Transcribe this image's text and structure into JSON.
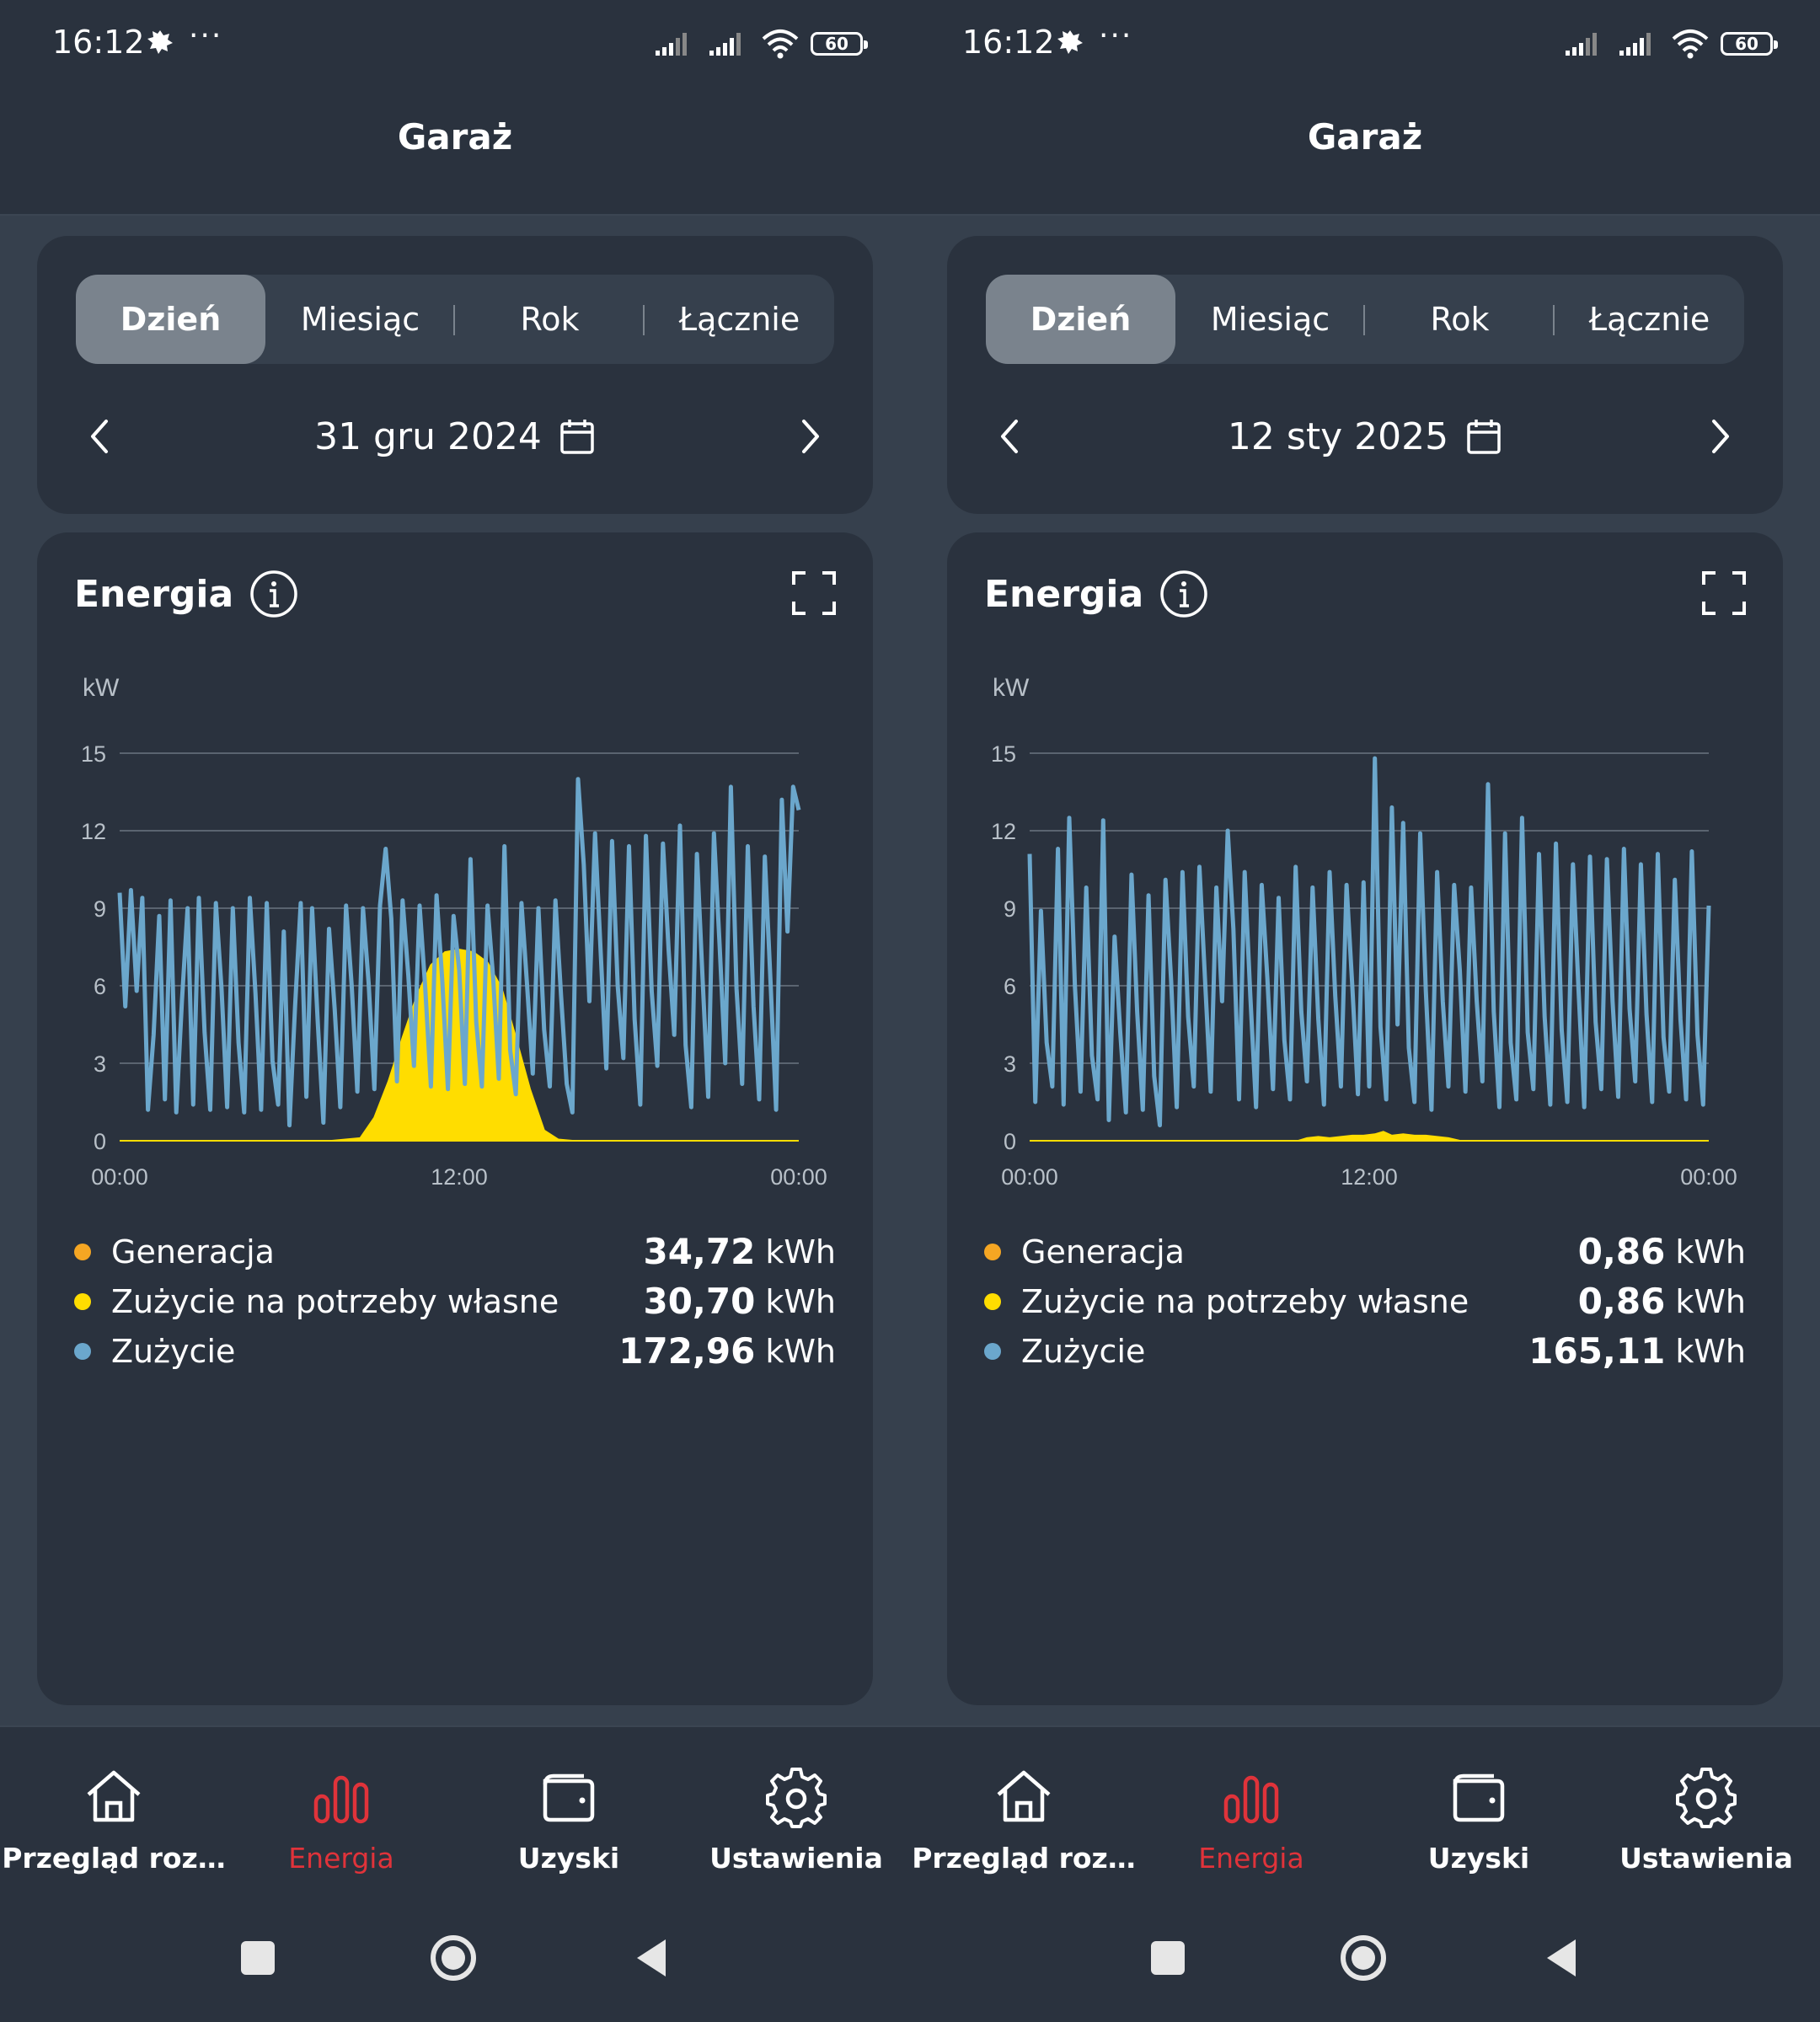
{
  "screens": [
    {
      "status": {
        "time": "16:12",
        "dots": "···",
        "battery": "60"
      },
      "header": {
        "title": "Garaż"
      },
      "tabs": [
        {
          "label": "Dzień"
        },
        {
          "label": "Miesiąc"
        },
        {
          "label": "Rok"
        },
        {
          "label": "Łącznie"
        }
      ],
      "date": "31 gru 2024",
      "energy": {
        "title": "Energia"
      },
      "chart_data": {
        "type": "area",
        "ylabel": "kW",
        "yticks": [
          "0",
          "3",
          "6",
          "9",
          "12",
          "15"
        ],
        "ylim": [
          0,
          15
        ],
        "xticks": [
          "00:00",
          "12:00",
          "00:00"
        ],
        "xlim": [
          0,
          24
        ],
        "series": [
          {
            "name": "Zużycie na potrzeby własne",
            "color": "#ffdd00",
            "x": [
              0,
              7.5,
              8.5,
              9,
              9.5,
              10,
              10.5,
              11,
              11.5,
              12,
              12.5,
              13,
              13.5,
              14,
              14.5,
              15,
              15.5,
              16,
              24
            ],
            "values": [
              0,
              0,
              0.1,
              0.9,
              2.3,
              4.0,
              5.6,
              6.8,
              7.3,
              7.4,
              7.3,
              6.9,
              5.9,
              4.0,
              2.0,
              0.4,
              0.05,
              0,
              0
            ]
          },
          {
            "name": "Zużycie",
            "color": "#6ba7cc",
            "x": [
              0,
              0.2,
              0.4,
              0.6,
              0.8,
              1.0,
              1.2,
              1.4,
              1.6,
              1.8,
              2.0,
              2.2,
              2.4,
              2.6,
              2.8,
              3.0,
              3.2,
              3.4,
              3.6,
              3.8,
              4.0,
              4.2,
              4.4,
              4.6,
              4.8,
              5.0,
              5.2,
              5.4,
              5.6,
              5.8,
              6.0,
              6.2,
              6.4,
              6.6,
              6.8,
              7.0,
              7.2,
              7.4,
              7.6,
              7.8,
              8.0,
              8.2,
              8.4,
              8.6,
              8.8,
              9.0,
              9.2,
              9.4,
              9.6,
              9.8,
              10.0,
              10.2,
              10.4,
              10.6,
              10.8,
              11.0,
              11.2,
              11.4,
              11.6,
              11.8,
              12.0,
              12.2,
              12.4,
              12.6,
              12.8,
              13.0,
              13.2,
              13.4,
              13.6,
              13.8,
              14.0,
              14.2,
              14.4,
              14.6,
              14.8,
              15.0,
              15.2,
              15.4,
              15.6,
              15.8,
              16.0,
              16.2,
              16.4,
              16.6,
              16.8,
              17.0,
              17.2,
              17.4,
              17.6,
              17.8,
              18.0,
              18.2,
              18.4,
              18.6,
              18.8,
              19.0,
              19.2,
              19.4,
              19.6,
              19.8,
              20.0,
              20.2,
              20.4,
              20.6,
              20.8,
              21.0,
              21.2,
              21.4,
              21.6,
              21.8,
              22.0,
              22.2,
              22.4,
              22.6,
              22.8,
              23.0,
              23.2,
              23.4,
              23.6,
              23.8,
              24.0
            ],
            "values": [
              9.6,
              5.2,
              9.7,
              5.8,
              9.4,
              1.2,
              4.1,
              8.7,
              1.6,
              9.3,
              1.1,
              5.4,
              9.0,
              1.4,
              9.4,
              4.2,
              1.2,
              9.2,
              5.9,
              1.3,
              9.0,
              3.8,
              1.1,
              9.4,
              5.7,
              1.2,
              9.2,
              3.1,
              1.4,
              8.1,
              0.6,
              5.2,
              9.2,
              1.7,
              9.0,
              4.6,
              0.7,
              8.2,
              5.1,
              1.3,
              9.1,
              6.0,
              1.9,
              9.0,
              6.1,
              2.0,
              9.1,
              11.3,
              8.6,
              2.3,
              9.3,
              6.4,
              2.9,
              9.1,
              5.9,
              2.1,
              9.5,
              6.2,
              2.0,
              8.7,
              6.6,
              2.2,
              10.9,
              4.6,
              2.1,
              9.1,
              6.3,
              2.4,
              11.4,
              3.5,
              1.8,
              9.2,
              6.0,
              2.6,
              9.0,
              4.3,
              2.1,
              9.3,
              5.6,
              2.2,
              1.1,
              14.0,
              10.7,
              5.4,
              11.9,
              7.3,
              2.8,
              11.6,
              6.0,
              3.2,
              11.4,
              4.7,
              1.4,
              11.8,
              5.8,
              2.9,
              11.5,
              7.4,
              4.1,
              12.2,
              3.7,
              1.3,
              11.1,
              6.3,
              1.7,
              11.9,
              7.6,
              3.0,
              13.7,
              5.9,
              2.2,
              11.4,
              5.2,
              1.6,
              11.0,
              6.2,
              1.2,
              13.2,
              8.1,
              13.7,
              12.8
            ]
          }
        ]
      },
      "legend": [
        {
          "label": "Generacja",
          "value": "34,72",
          "unit": "kWh",
          "color": "#f5a623"
        },
        {
          "label": "Zużycie na potrzeby własne",
          "value": "30,70",
          "unit": "kWh",
          "color": "#ffdd00"
        },
        {
          "label": "Zużycie",
          "value": "172,96",
          "unit": "kWh",
          "color": "#6ba7cc"
        }
      ],
      "bottom_nav": [
        {
          "label": "Przegląd roz…"
        },
        {
          "label": "Energia"
        },
        {
          "label": "Uzyski"
        },
        {
          "label": "Ustawienia"
        }
      ]
    },
    {
      "status": {
        "time": "16:12",
        "dots": "···",
        "battery": "60"
      },
      "header": {
        "title": "Garaż"
      },
      "tabs": [
        {
          "label": "Dzień"
        },
        {
          "label": "Miesiąc"
        },
        {
          "label": "Rok"
        },
        {
          "label": "Łącznie"
        }
      ],
      "date": "12 sty 2025",
      "energy": {
        "title": "Energia"
      },
      "chart_data": {
        "type": "area",
        "ylabel": "kW",
        "yticks": [
          "0",
          "3",
          "6",
          "9",
          "12",
          "15"
        ],
        "ylim": [
          0,
          15
        ],
        "xticks": [
          "00:00",
          "12:00",
          "00:00"
        ],
        "xlim": [
          0,
          24
        ],
        "series": [
          {
            "name": "Zużycie na potrzeby własne",
            "color": "#ffdd00",
            "x": [
              0,
              9.5,
              9.8,
              10.2,
              10.6,
              11,
              11.4,
              11.8,
              12.2,
              12.5,
              12.8,
              13.2,
              13.6,
              14,
              14.4,
              14.8,
              15.2,
              24
            ],
            "values": [
              0,
              0,
              0.1,
              0.15,
              0.1,
              0.15,
              0.2,
              0.2,
              0.25,
              0.35,
              0.2,
              0.25,
              0.2,
              0.2,
              0.15,
              0.1,
              0,
              0
            ]
          },
          {
            "name": "Zużycie",
            "color": "#6ba7cc",
            "x": [
              0,
              0.2,
              0.4,
              0.6,
              0.8,
              1.0,
              1.2,
              1.4,
              1.6,
              1.8,
              2.0,
              2.2,
              2.4,
              2.6,
              2.8,
              3.0,
              3.2,
              3.4,
              3.6,
              3.8,
              4.0,
              4.2,
              4.4,
              4.6,
              4.8,
              5.0,
              5.2,
              5.4,
              5.6,
              5.8,
              6.0,
              6.2,
              6.4,
              6.6,
              6.8,
              7.0,
              7.2,
              7.4,
              7.6,
              7.8,
              8.0,
              8.2,
              8.4,
              8.6,
              8.8,
              9.0,
              9.2,
              9.4,
              9.6,
              9.8,
              10.0,
              10.2,
              10.4,
              10.6,
              10.8,
              11.0,
              11.2,
              11.4,
              11.6,
              11.8,
              12.0,
              12.2,
              12.4,
              12.6,
              12.8,
              13.0,
              13.2,
              13.4,
              13.6,
              13.8,
              14.0,
              14.2,
              14.4,
              14.6,
              14.8,
              15.0,
              15.2,
              15.4,
              15.6,
              15.8,
              16.0,
              16.2,
              16.4,
              16.6,
              16.8,
              17.0,
              17.2,
              17.4,
              17.6,
              17.8,
              18.0,
              18.2,
              18.4,
              18.6,
              18.8,
              19.0,
              19.2,
              19.4,
              19.6,
              19.8,
              20.0,
              20.2,
              20.4,
              20.6,
              20.8,
              21.0,
              21.2,
              21.4,
              21.6,
              21.8,
              22.0,
              22.2,
              22.4,
              22.6,
              22.8,
              23.0,
              23.2,
              23.4,
              23.6,
              23.8,
              24.0
            ],
            "values": [
              11.1,
              1.5,
              8.9,
              3.8,
              2.1,
              11.3,
              1.4,
              12.5,
              6.0,
              1.9,
              9.8,
              3.3,
              1.6,
              12.4,
              0.8,
              7.9,
              4.2,
              1.1,
              10.3,
              5.0,
              1.2,
              9.5,
              2.5,
              0.6,
              10.1,
              6.2,
              1.3,
              10.4,
              4.8,
              2.1,
              10.6,
              6.2,
              1.9,
              9.8,
              5.4,
              12.0,
              8.2,
              1.6,
              10.4,
              5.6,
              1.3,
              9.9,
              6.3,
              2.0,
              9.4,
              3.9,
              1.6,
              10.6,
              5.0,
              2.3,
              9.8,
              4.7,
              1.4,
              10.4,
              5.6,
              2.1,
              9.9,
              6.0,
              1.8,
              10.0,
              2.1,
              14.8,
              4.4,
              1.6,
              12.9,
              4.5,
              12.3,
              3.6,
              1.5,
              11.9,
              5.8,
              1.2,
              10.4,
              5.4,
              2.1,
              9.9,
              6.6,
              1.9,
              9.8,
              5.4,
              2.3,
              13.8,
              5.0,
              1.3,
              11.9,
              3.8,
              1.6,
              12.5,
              4.2,
              2.0,
              11.1,
              4.8,
              1.4,
              11.5,
              4.3,
              1.5,
              10.7,
              5.8,
              1.3,
              11.0,
              4.6,
              2.0,
              10.9,
              5.4,
              1.7,
              11.3,
              5.1,
              2.3,
              10.7,
              4.9,
              1.5,
              11.1,
              4.0,
              1.9,
              10.1,
              4.7,
              1.6,
              11.2,
              4.1,
              1.4,
              9.1
            ]
          }
        ]
      },
      "legend": [
        {
          "label": "Generacja",
          "value": "0,86",
          "unit": "kWh",
          "color": "#f5a623"
        },
        {
          "label": "Zużycie na potrzeby własne",
          "value": "0,86",
          "unit": "kWh",
          "color": "#ffdd00"
        },
        {
          "label": "Zużycie",
          "value": "165,11",
          "unit": "kWh",
          "color": "#6ba7cc"
        }
      ],
      "bottom_nav": [
        {
          "label": "Przegląd roz…"
        },
        {
          "label": "Energia"
        },
        {
          "label": "Uzyski"
        },
        {
          "label": "Ustawienia"
        }
      ]
    }
  ]
}
